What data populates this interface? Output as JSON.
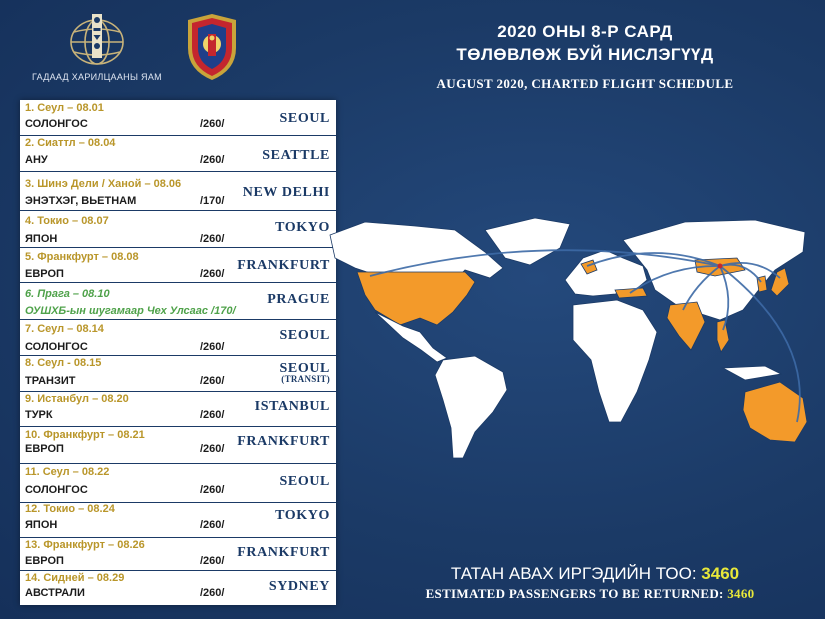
{
  "header": {
    "ministry": "ГАДААД ХАРИЛЦААНЫ ЯАМ",
    "title_mn_line1": "2020 ОНЫ 8-Р САРД",
    "title_mn_line2": "ТӨЛӨВЛӨЖ БУЙ НИСЛЭГҮҮД",
    "title_en": "AUGUST 2020, CHARTED FLIGHT SCHEDULE"
  },
  "flights": [
    {
      "route": "1. Сеул – 08.01",
      "country": "СОЛОНГОС",
      "pax": "/260/",
      "city": "SEOUL",
      "city_sub": ""
    },
    {
      "route": "2. Сиаттл  – 08.04",
      "country": "АНУ",
      "pax": "/260/",
      "city": "SEATTLE",
      "city_sub": ""
    },
    {
      "route": "3. Шинэ Дели / Ханой – 08.06",
      "country": "ЭНЭТХЭГ, ВЬЕТНАМ",
      "pax": "/170/",
      "city": "NEW DELHI",
      "city_sub": ""
    },
    {
      "route": "4. Токио – 08.07",
      "country": "ЯПОН",
      "pax": "/260/",
      "city": "TOKYO",
      "city_sub": ""
    },
    {
      "route": "5. Франкфурт – 08.08",
      "country": "ЕВРОП",
      "pax": "/260/",
      "city": "FRANKFURT",
      "city_sub": ""
    },
    {
      "route": "6. Прага – 08.10",
      "country": "ОУШХБ-ын шугамаар Чех Улсаас  /170/",
      "pax": "",
      "city": "PRAGUE",
      "city_sub": ""
    },
    {
      "route": "7. Сеул – 08.14",
      "country": "СОЛОНГОС",
      "pax": "/260/",
      "city": "SEOUL",
      "city_sub": ""
    },
    {
      "route": "8. Сеул - 08.15",
      "country": "ТРАНЗИТ",
      "pax": "/260/",
      "city": "SEOUL",
      "city_sub": "(TRANSIT)"
    },
    {
      "route": "9. Истанбул – 08.20",
      "country": "ТУРК",
      "pax": "/260/",
      "city": "ISTANBUL",
      "city_sub": ""
    },
    {
      "route": "10. Франкфурт – 08.21",
      "country": "ЕВРОП",
      "pax": "/260/",
      "city": "FRANKFURT",
      "city_sub": ""
    },
    {
      "route": "11. Сеул – 08.22",
      "country": "СОЛОНГОС",
      "pax": "/260/",
      "city": "SEOUL",
      "city_sub": ""
    },
    {
      "route": "12. Токио – 08.24",
      "country": "ЯПОН",
      "pax": "/260/",
      "city": "TOKYO",
      "city_sub": ""
    },
    {
      "route": "13. Франкфурт – 08.26",
      "country": "ЕВРОП",
      "pax": "/260/",
      "city": "FRANKFURT",
      "city_sub": ""
    },
    {
      "route": "14. Сидней – 08.29",
      "country": "АВСТРАЛИ",
      "pax": "/260/",
      "city": "SYDNEY",
      "city_sub": ""
    }
  ],
  "footer": {
    "mn_label": "ТАТАН АВАХ ИРГЭДИЙН  ТОО: ",
    "en_label": "ESTIMATED PASSENGERS TO BE RETURNED: ",
    "total": "3460"
  },
  "colors": {
    "background": "#1b3a66",
    "route_text": "#b9962a",
    "highlight_route": "#4fa24a",
    "destination_fill": "#f39a2a",
    "total_text": "#e8e83a"
  }
}
